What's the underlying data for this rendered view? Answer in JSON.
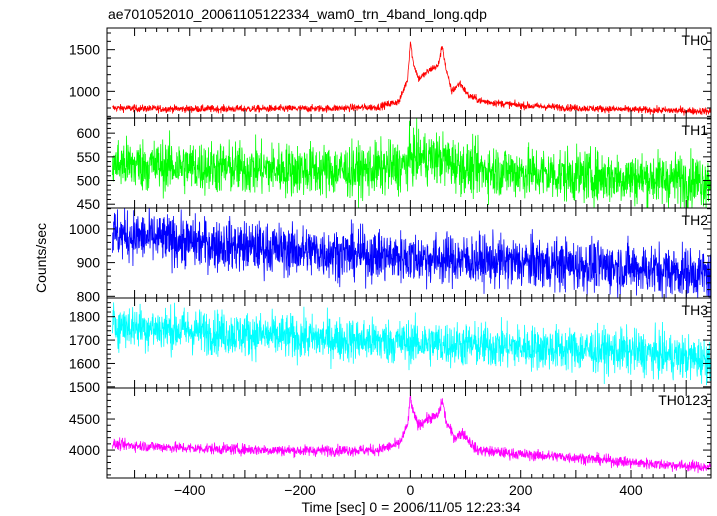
{
  "chart_data": {
    "type": "line",
    "title": "ae701052010_20061105122334_wam0_trn_4band_long.qdp",
    "xlabel": "Time [sec] 0 = 2006/11/05 12:23:34",
    "ylabel": "Counts/sec",
    "xlim": [
      -550,
      545
    ],
    "xticks": [
      -400,
      -200,
      0,
      200,
      400
    ],
    "xtick_labels": [
      "−400",
      "−200",
      "0",
      "200",
      "400"
    ],
    "grid": false,
    "panels": [
      {
        "name": "TH0",
        "color": "#ff0000",
        "ylim": [
          680,
          1760
        ],
        "yticks": [
          1000,
          1500
        ],
        "ytick_labels": [
          "1000",
          "1500"
        ],
        "trend_points": [
          [
            -540,
            800
          ],
          [
            -450,
            790
          ],
          [
            -300,
            790
          ],
          [
            -150,
            795
          ],
          [
            -60,
            810
          ],
          [
            -20,
            880
          ],
          [
            -5,
            1150
          ],
          [
            0,
            1600
          ],
          [
            5,
            1350
          ],
          [
            15,
            1150
          ],
          [
            25,
            1200
          ],
          [
            40,
            1280
          ],
          [
            50,
            1300
          ],
          [
            58,
            1550
          ],
          [
            65,
            1250
          ],
          [
            75,
            1000
          ],
          [
            90,
            1100
          ],
          [
            105,
            950
          ],
          [
            130,
            880
          ],
          [
            200,
            830
          ],
          [
            300,
            800
          ],
          [
            400,
            780
          ],
          [
            545,
            760
          ]
        ],
        "noise": 22
      },
      {
        "name": "TH1",
        "color": "#00ff00",
        "ylim": [
          442,
          632
        ],
        "yticks": [
          450,
          500,
          550,
          600
        ],
        "ytick_labels": [
          "450",
          "500",
          "550",
          "600"
        ],
        "trend_points": [
          [
            -540,
            535
          ],
          [
            -300,
            525
          ],
          [
            -100,
            520
          ],
          [
            -10,
            530
          ],
          [
            0,
            550
          ],
          [
            60,
            545
          ],
          [
            100,
            525
          ],
          [
            300,
            510
          ],
          [
            545,
            500
          ]
        ],
        "noise": 28
      },
      {
        "name": "TH2",
        "color": "#0000ff",
        "ylim": [
          795,
          1062
        ],
        "yticks": [
          800,
          900,
          1000
        ],
        "ytick_labels": [
          "800",
          "900",
          "1000"
        ],
        "trend_points": [
          [
            -540,
            985
          ],
          [
            -400,
            960
          ],
          [
            -200,
            935
          ],
          [
            0,
            915
          ],
          [
            200,
            900
          ],
          [
            400,
            885
          ],
          [
            545,
            865
          ]
        ],
        "noise": 38
      },
      {
        "name": "TH3",
        "color": "#00ffff",
        "ylim": [
          1495,
          1880
        ],
        "yticks": [
          1500,
          1600,
          1700,
          1800
        ],
        "ytick_labels": [
          "1500",
          "1600",
          "1700",
          "1800"
        ],
        "trend_points": [
          [
            -540,
            1765
          ],
          [
            -400,
            1740
          ],
          [
            -200,
            1710
          ],
          [
            0,
            1690
          ],
          [
            200,
            1670
          ],
          [
            400,
            1650
          ],
          [
            545,
            1615
          ]
        ],
        "noise": 48
      },
      {
        "name": "TH0123",
        "color": "#ff00ff",
        "ylim": [
          3550,
          5000
        ],
        "yticks": [
          4000,
          4500
        ],
        "ytick_labels": [
          "4000",
          "4500"
        ],
        "trend_points": [
          [
            -540,
            4090
          ],
          [
            -400,
            4030
          ],
          [
            -200,
            3990
          ],
          [
            -60,
            4000
          ],
          [
            -20,
            4100
          ],
          [
            -5,
            4400
          ],
          [
            0,
            4850
          ],
          [
            5,
            4600
          ],
          [
            15,
            4400
          ],
          [
            30,
            4500
          ],
          [
            50,
            4550
          ],
          [
            58,
            4800
          ],
          [
            65,
            4450
          ],
          [
            80,
            4200
          ],
          [
            95,
            4280
          ],
          [
            120,
            4000
          ],
          [
            200,
            3930
          ],
          [
            300,
            3880
          ],
          [
            400,
            3800
          ],
          [
            545,
            3720
          ]
        ],
        "noise": 45
      }
    ]
  }
}
